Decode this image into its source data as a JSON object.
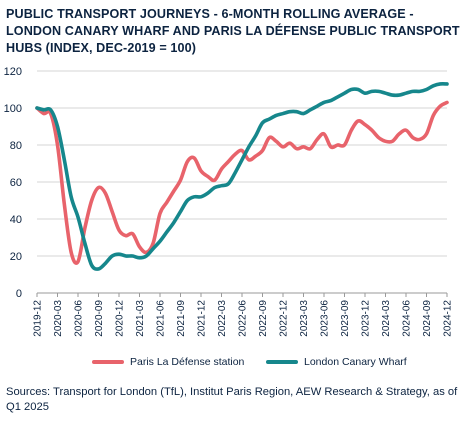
{
  "title": "PUBLIC TRANSPORT JOURNEYS - 6-MONTH ROLLING AVERAGE - LONDON CANARY WHARF AND PARIS LA DÉFENSE PUBLIC TRANSPORT HUBS (INDEX, DEC-2019 = 100)",
  "source": "Sources: Transport for London (TfL), Institut Paris Region, AEW Research & Strategy, as of Q1 2025",
  "colors": {
    "paris": "#e8636b",
    "london": "#16878c",
    "grid": "#d4d4d4",
    "text": "#0c2340"
  },
  "chart_data": {
    "type": "line",
    "title": "PUBLIC TRANSPORT JOURNEYS - 6-MONTH ROLLING AVERAGE - LONDON CANARY WHARF AND PARIS LA DÉFENSE PUBLIC TRANSPORT HUBS (INDEX, DEC-2019 = 100)",
    "x_start": "2019-12",
    "x_end": "2024-12",
    "ylim": [
      0,
      120
    ],
    "yticks": [
      0,
      20,
      40,
      60,
      80,
      100,
      120
    ],
    "xticks": [
      "2019-12",
      "2020-03",
      "2020-06",
      "2020-09",
      "2020-12",
      "2021-03",
      "2021-06",
      "2021-09",
      "2021-12",
      "2022-03",
      "2022-06",
      "2022-09",
      "2022-12",
      "2023-03",
      "2023-06",
      "2023-09",
      "2023-12",
      "2024-03",
      "2024-06",
      "2024-09",
      "2024-12"
    ],
    "grid": "horizontal",
    "legend_position": "bottom",
    "series": [
      {
        "name": "Paris La Défense station",
        "points": [
          [
            "2019-12",
            100
          ],
          [
            "2020-01",
            97
          ],
          [
            "2020-02",
            97
          ],
          [
            "2020-03",
            80
          ],
          [
            "2020-04",
            48
          ],
          [
            "2020-05",
            22
          ],
          [
            "2020-06",
            17
          ],
          [
            "2020-07",
            35
          ],
          [
            "2020-08",
            50
          ],
          [
            "2020-09",
            57
          ],
          [
            "2020-10",
            54
          ],
          [
            "2020-11",
            44
          ],
          [
            "2020-12",
            34
          ],
          [
            "2021-01",
            31
          ],
          [
            "2021-02",
            32
          ],
          [
            "2021-03",
            25
          ],
          [
            "2021-04",
            22
          ],
          [
            "2021-05",
            27
          ],
          [
            "2021-06",
            43
          ],
          [
            "2021-07",
            49
          ],
          [
            "2021-08",
            55
          ],
          [
            "2021-09",
            61
          ],
          [
            "2021-10",
            71
          ],
          [
            "2021-11",
            73
          ],
          [
            "2021-12",
            66
          ],
          [
            "2022-01",
            63
          ],
          [
            "2022-02",
            61
          ],
          [
            "2022-03",
            67
          ],
          [
            "2022-04",
            71
          ],
          [
            "2022-05",
            75
          ],
          [
            "2022-06",
            77
          ],
          [
            "2022-07",
            72
          ],
          [
            "2022-08",
            74
          ],
          [
            "2022-09",
            77
          ],
          [
            "2022-10",
            84
          ],
          [
            "2022-11",
            82
          ],
          [
            "2022-12",
            79
          ],
          [
            "2023-01",
            81
          ],
          [
            "2023-02",
            78
          ],
          [
            "2023-03",
            79
          ],
          [
            "2023-04",
            78
          ],
          [
            "2023-05",
            83
          ],
          [
            "2023-06",
            86
          ],
          [
            "2023-07",
            79
          ],
          [
            "2023-08",
            80
          ],
          [
            "2023-09",
            80
          ],
          [
            "2023-10",
            88
          ],
          [
            "2023-11",
            93
          ],
          [
            "2023-12",
            91
          ],
          [
            "2024-01",
            88
          ],
          [
            "2024-02",
            84
          ],
          [
            "2024-03",
            82
          ],
          [
            "2024-04",
            82
          ],
          [
            "2024-05",
            86
          ],
          [
            "2024-06",
            88
          ],
          [
            "2024-07",
            84
          ],
          [
            "2024-08",
            83
          ],
          [
            "2024-09",
            86
          ],
          [
            "2024-10",
            96
          ],
          [
            "2024-11",
            101
          ],
          [
            "2024-12",
            103
          ]
        ]
      },
      {
        "name": "London Canary Wharf",
        "points": [
          [
            "2019-12",
            100
          ],
          [
            "2020-01",
            99
          ],
          [
            "2020-02",
            99
          ],
          [
            "2020-03",
            90
          ],
          [
            "2020-04",
            72
          ],
          [
            "2020-05",
            52
          ],
          [
            "2020-06",
            41
          ],
          [
            "2020-07",
            27
          ],
          [
            "2020-08",
            15
          ],
          [
            "2020-09",
            13
          ],
          [
            "2020-10",
            16
          ],
          [
            "2020-11",
            20
          ],
          [
            "2020-12",
            21
          ],
          [
            "2021-01",
            20
          ],
          [
            "2021-02",
            20
          ],
          [
            "2021-03",
            19
          ],
          [
            "2021-04",
            20
          ],
          [
            "2021-05",
            24
          ],
          [
            "2021-06",
            28
          ],
          [
            "2021-07",
            33
          ],
          [
            "2021-08",
            38
          ],
          [
            "2021-09",
            44
          ],
          [
            "2021-10",
            50
          ],
          [
            "2021-11",
            52
          ],
          [
            "2021-12",
            52
          ],
          [
            "2022-01",
            54
          ],
          [
            "2022-02",
            57
          ],
          [
            "2022-03",
            58
          ],
          [
            "2022-04",
            59
          ],
          [
            "2022-05",
            65
          ],
          [
            "2022-06",
            72
          ],
          [
            "2022-07",
            79
          ],
          [
            "2022-08",
            85
          ],
          [
            "2022-09",
            92
          ],
          [
            "2022-10",
            94
          ],
          [
            "2022-11",
            96
          ],
          [
            "2022-12",
            97
          ],
          [
            "2023-01",
            98
          ],
          [
            "2023-02",
            98
          ],
          [
            "2023-03",
            97
          ],
          [
            "2023-04",
            99
          ],
          [
            "2023-05",
            101
          ],
          [
            "2023-06",
            103
          ],
          [
            "2023-07",
            104
          ],
          [
            "2023-08",
            106
          ],
          [
            "2023-09",
            108
          ],
          [
            "2023-10",
            110
          ],
          [
            "2023-11",
            110
          ],
          [
            "2023-12",
            108
          ],
          [
            "2024-01",
            109
          ],
          [
            "2024-02",
            109
          ],
          [
            "2024-03",
            108
          ],
          [
            "2024-04",
            107
          ],
          [
            "2024-05",
            107
          ],
          [
            "2024-06",
            108
          ],
          [
            "2024-07",
            109
          ],
          [
            "2024-08",
            109
          ],
          [
            "2024-09",
            110
          ],
          [
            "2024-10",
            112
          ],
          [
            "2024-11",
            113
          ],
          [
            "2024-12",
            113
          ]
        ]
      }
    ]
  }
}
